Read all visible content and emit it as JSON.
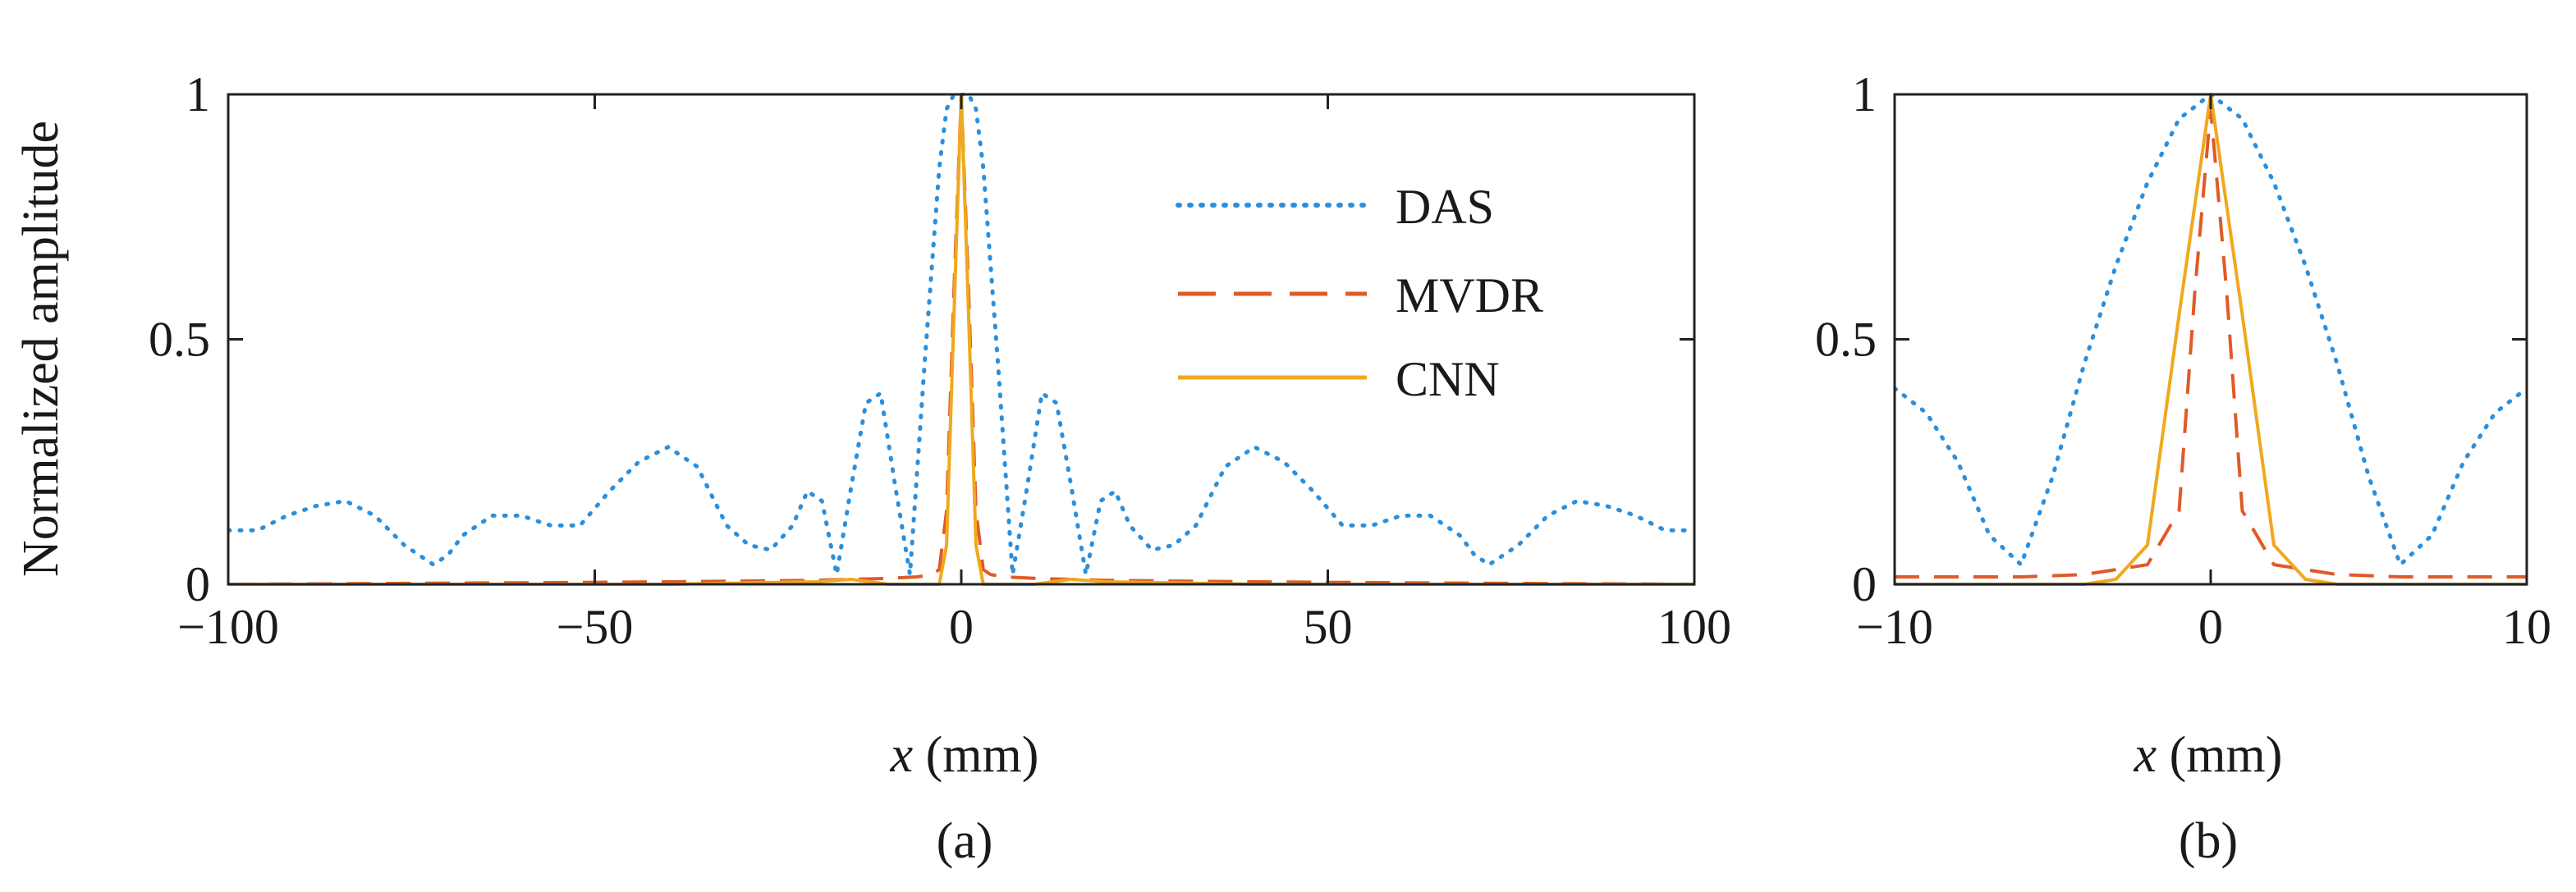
{
  "chart_data": [
    {
      "panel": "a",
      "caption": "(a)",
      "type": "line",
      "xlabel_var": "x",
      "xlabel_unit": " (mm)",
      "ylabel": "Normalized amplitude",
      "xlim": [
        -100,
        100
      ],
      "ylim": [
        0,
        1
      ],
      "xticks": [
        -100,
        -50,
        0,
        50,
        100
      ],
      "xtick_labels": [
        "−100",
        "−50",
        "0",
        "50",
        "100"
      ],
      "yticks": [
        0,
        0.5,
        1
      ],
      "ytick_labels": [
        "0",
        "0.5",
        "1"
      ],
      "legend": {
        "position": "top-right",
        "entries": [
          "DAS",
          "MVDR",
          "CNN"
        ]
      },
      "series": [
        {
          "name": "DAS",
          "style": "dotted",
          "color": "#2b8fdc",
          "x": [
            -100,
            -96,
            -92,
            -88,
            -84,
            -80,
            -76,
            -72,
            -70,
            -68,
            -64,
            -60,
            -56,
            -52,
            -48,
            -44,
            -40,
            -36,
            -32,
            -29,
            -26,
            -23,
            -21,
            -19,
            -17,
            -15,
            -13,
            -11,
            -9,
            -7,
            -5,
            -3,
            -2,
            -1,
            0,
            1,
            2,
            3,
            5,
            7,
            9,
            11,
            13,
            15,
            17,
            19,
            21,
            23,
            26,
            29,
            32,
            36,
            40,
            44,
            48,
            52,
            56,
            60,
            64,
            68,
            70,
            72,
            76,
            80,
            84,
            88,
            92,
            96,
            100
          ],
          "y": [
            0.11,
            0.11,
            0.14,
            0.16,
            0.17,
            0.14,
            0.08,
            0.04,
            0.06,
            0.1,
            0.14,
            0.14,
            0.12,
            0.12,
            0.19,
            0.25,
            0.28,
            0.24,
            0.12,
            0.08,
            0.07,
            0.12,
            0.19,
            0.17,
            0.02,
            0.2,
            0.37,
            0.39,
            0.2,
            0.02,
            0.45,
            0.85,
            0.97,
            1.0,
            1.0,
            1.0,
            0.97,
            0.85,
            0.45,
            0.02,
            0.2,
            0.39,
            0.37,
            0.2,
            0.02,
            0.17,
            0.19,
            0.12,
            0.07,
            0.08,
            0.12,
            0.24,
            0.28,
            0.25,
            0.19,
            0.12,
            0.12,
            0.14,
            0.14,
            0.1,
            0.06,
            0.04,
            0.08,
            0.14,
            0.17,
            0.16,
            0.14,
            0.11,
            0.11
          ]
        },
        {
          "name": "MVDR",
          "style": "dashed",
          "color": "#e05a28",
          "x": [
            -100,
            -60,
            -40,
            -20,
            -10,
            -6,
            -4,
            -3,
            -2,
            -1,
            0,
            1,
            2,
            3,
            4,
            6,
            10,
            20,
            40,
            60,
            100
          ],
          "y": [
            0.0,
            0.003,
            0.005,
            0.008,
            0.012,
            0.015,
            0.02,
            0.03,
            0.15,
            0.6,
            1.0,
            0.6,
            0.15,
            0.03,
            0.02,
            0.015,
            0.012,
            0.008,
            0.005,
            0.003,
            0.0
          ]
        },
        {
          "name": "CNN",
          "style": "solid",
          "color": "#f0a81e",
          "x": [
            -100,
            -40,
            -20,
            -15,
            -10,
            -5,
            -3,
            -2,
            -1,
            0,
            1,
            2,
            3,
            5,
            10,
            15,
            20,
            40,
            100
          ],
          "y": [
            0.0,
            0.0,
            0.005,
            0.01,
            0.0,
            0.0,
            0.0,
            0.08,
            0.55,
            1.0,
            0.55,
            0.08,
            0.0,
            0.0,
            0.0,
            0.01,
            0.005,
            0.0,
            0.0
          ]
        }
      ]
    },
    {
      "panel": "b",
      "caption": "(b)",
      "type": "line",
      "xlabel_var": "x",
      "xlabel_unit": " (mm)",
      "xlim": [
        -10,
        10
      ],
      "ylim": [
        0,
        1
      ],
      "xticks": [
        -10,
        0,
        10
      ],
      "xtick_labels": [
        "−10",
        "0",
        "10"
      ],
      "yticks": [
        0,
        0.5,
        1
      ],
      "ytick_labels": [
        "0",
        "0.5",
        "1"
      ],
      "series": [
        {
          "name": "DAS",
          "style": "dotted",
          "color": "#2b8fdc",
          "x": [
            -10,
            -9,
            -8,
            -7,
            -6,
            -5,
            -4,
            -3,
            -2,
            -1,
            0,
            1,
            2,
            3,
            4,
            5,
            6,
            7,
            8,
            9,
            10
          ],
          "y": [
            0.4,
            0.35,
            0.25,
            0.1,
            0.04,
            0.22,
            0.45,
            0.65,
            0.82,
            0.95,
            1.0,
            0.95,
            0.82,
            0.65,
            0.45,
            0.22,
            0.04,
            0.1,
            0.25,
            0.35,
            0.4
          ]
        },
        {
          "name": "MVDR",
          "style": "dashed",
          "color": "#e05a28",
          "x": [
            -10,
            -6,
            -4,
            -3,
            -2,
            -1,
            -0.5,
            0,
            0.5,
            1,
            2,
            3,
            4,
            6,
            10
          ],
          "y": [
            0.015,
            0.015,
            0.02,
            0.03,
            0.04,
            0.15,
            0.6,
            0.97,
            0.6,
            0.15,
            0.04,
            0.03,
            0.02,
            0.015,
            0.015
          ]
        },
        {
          "name": "CNN",
          "style": "solid",
          "color": "#f0a81e",
          "x": [
            -10,
            -6,
            -4,
            -3,
            -2,
            -1,
            0,
            1,
            2,
            3,
            4,
            6,
            10
          ],
          "y": [
            0.0,
            0.0,
            0.0,
            0.01,
            0.08,
            0.55,
            1.0,
            0.55,
            0.08,
            0.01,
            0.0,
            0.0,
            0.0
          ]
        }
      ]
    }
  ]
}
